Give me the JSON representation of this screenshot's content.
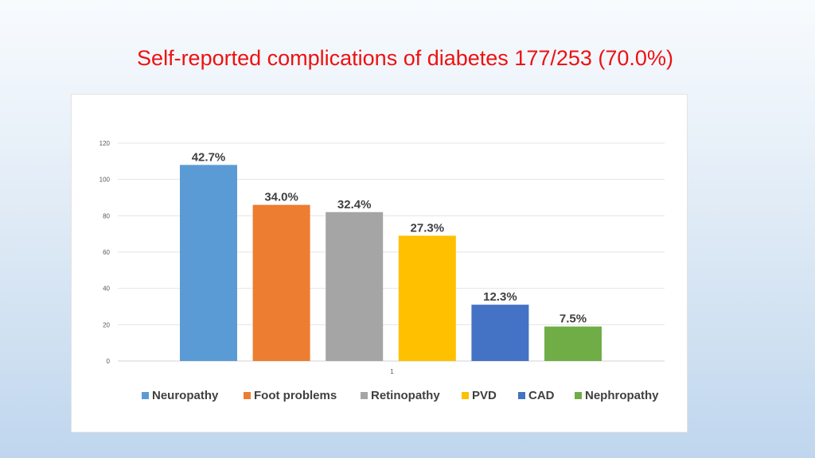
{
  "slide": {
    "title": "Self-reported complications of diabetes 177/253 (70.0%)",
    "title_color": "#ee1111"
  },
  "chart_data": {
    "type": "bar",
    "categories": [
      "1"
    ],
    "ylim": [
      0,
      120
    ],
    "y_ticks": [
      0,
      20,
      40,
      60,
      80,
      100,
      120
    ],
    "grid": true,
    "legend_position": "bottom",
    "series": [
      {
        "name": "Neuropathy",
        "values": [
          108
        ],
        "label": "42.7%",
        "color": "#5b9bd5"
      },
      {
        "name": "Foot problems",
        "values": [
          86
        ],
        "label": "34.0%",
        "color": "#ed7d31"
      },
      {
        "name": "Retinopathy",
        "values": [
          82
        ],
        "label": "32.4%",
        "color": "#a5a5a5"
      },
      {
        "name": "PVD",
        "values": [
          69
        ],
        "label": "27.3%",
        "color": "#ffc000"
      },
      {
        "name": "CAD",
        "values": [
          31
        ],
        "label": "12.3%",
        "color": "#4472c4"
      },
      {
        "name": "Nephropathy",
        "values": [
          19
        ],
        "label": "7.5%",
        "color": "#70ad47"
      }
    ]
  }
}
